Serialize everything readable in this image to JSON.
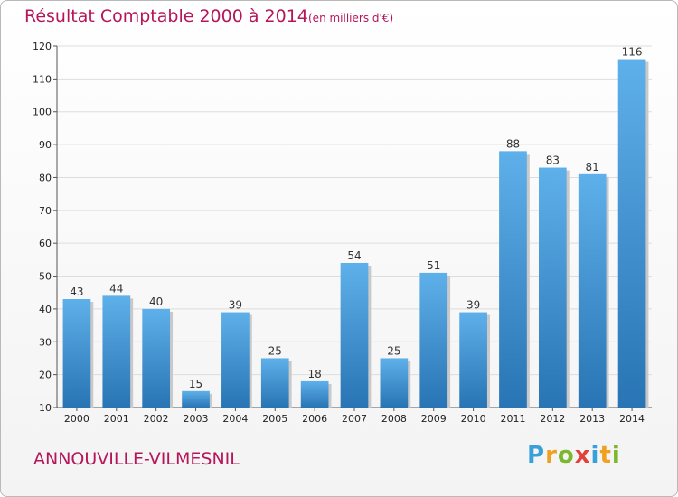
{
  "header": {
    "title": "Résultat Comptable 2000 à 2014",
    "subtitle": "(en milliers d'€)"
  },
  "footer": {
    "commune": "ANNOUVILLE-VILMESNIL",
    "logo": "Proxiti"
  },
  "colors": {
    "title": "#b5165b",
    "bar_top": "#5eb0ea",
    "bar_bottom": "#2874b4",
    "grid": "#dddddd"
  },
  "chart_data": {
    "type": "bar",
    "title": "Résultat Comptable 2000 à 2014",
    "subtitle": "(en milliers d'€)",
    "categories": [
      "2000",
      "2001",
      "2002",
      "2003",
      "2004",
      "2005",
      "2006",
      "2007",
      "2008",
      "2009",
      "2010",
      "2011",
      "2012",
      "2013",
      "2014"
    ],
    "values": [
      43,
      44,
      40,
      15,
      39,
      25,
      18,
      54,
      25,
      51,
      39,
      88,
      83,
      81,
      116
    ],
    "ylim": [
      10,
      120
    ],
    "yticks": [
      10,
      20,
      30,
      40,
      50,
      60,
      70,
      80,
      90,
      100,
      110,
      120
    ],
    "grid": true,
    "xlabel": "",
    "ylabel": ""
  }
}
